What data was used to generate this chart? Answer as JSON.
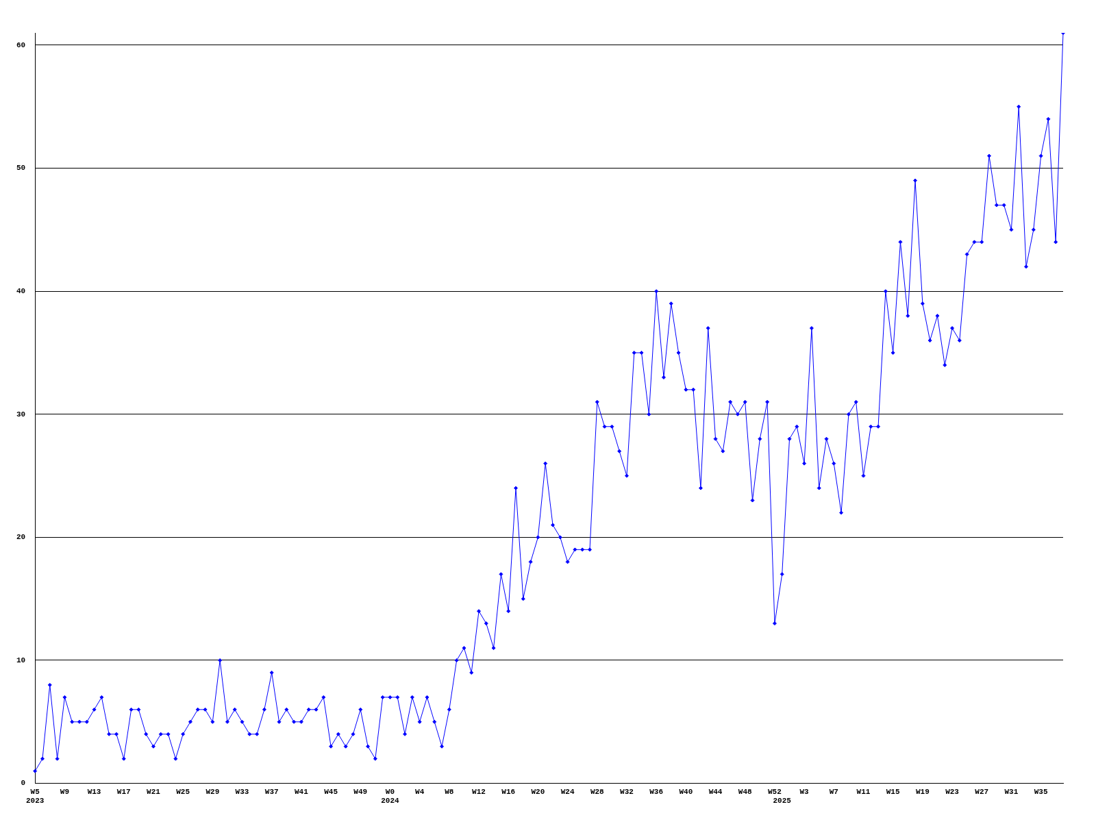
{
  "chart_data": {
    "type": "line",
    "categories": [
      "W5\n2023",
      null,
      null,
      null,
      "W9",
      null,
      null,
      null,
      "W13",
      null,
      null,
      null,
      "W17",
      null,
      null,
      null,
      "W21",
      null,
      null,
      null,
      "W25",
      null,
      null,
      null,
      "W29",
      null,
      null,
      null,
      "W33",
      null,
      null,
      null,
      "W37",
      null,
      null,
      null,
      "W41",
      null,
      null,
      null,
      "W45",
      null,
      null,
      null,
      "W49",
      null,
      null,
      null,
      "W0\n2024",
      null,
      null,
      null,
      "W4",
      null,
      null,
      null,
      "W8",
      null,
      null,
      null,
      "W12",
      null,
      null,
      null,
      "W16",
      null,
      null,
      null,
      "W20",
      null,
      null,
      null,
      "W24",
      null,
      null,
      null,
      "W28",
      null,
      null,
      null,
      "W32",
      null,
      null,
      null,
      "W36",
      null,
      null,
      null,
      "W40",
      null,
      null,
      null,
      "W44",
      null,
      null,
      null,
      "W48",
      null,
      null,
      null,
      "W52",
      "\n2025",
      null,
      null,
      "W3",
      null,
      null,
      null,
      "W7",
      null,
      null,
      null,
      "W11",
      null,
      null,
      null,
      "W15",
      null,
      null,
      null,
      "W19",
      null,
      null,
      null,
      "W23",
      null,
      null,
      null,
      "W27",
      null,
      null,
      null,
      "W31",
      null,
      null,
      null,
      "W35",
      null,
      null,
      null
    ],
    "series": [
      {
        "color": "#0000ff",
        "values": [
          1,
          2,
          8,
          2,
          7,
          5,
          5,
          5,
          6,
          7,
          4,
          4,
          2,
          6,
          6,
          4,
          3,
          4,
          4,
          2,
          4,
          5,
          6,
          6,
          5,
          10,
          5,
          6,
          5,
          4,
          4,
          6,
          9,
          5,
          6,
          5,
          5,
          6,
          6,
          7,
          3,
          4,
          3,
          4,
          6,
          3,
          2,
          7,
          7,
          7,
          4,
          7,
          5,
          7,
          5,
          3,
          6,
          10,
          11,
          9,
          14,
          13,
          11,
          17,
          14,
          24,
          15,
          18,
          20,
          26,
          21,
          20,
          18,
          19,
          19,
          19,
          31,
          29,
          29,
          27,
          25,
          35,
          35,
          30,
          40,
          33,
          39,
          35,
          32,
          32,
          24,
          37,
          28,
          27,
          31,
          30,
          31,
          23,
          28,
          31,
          13,
          17,
          28,
          29,
          26,
          37,
          24,
          28,
          26,
          22,
          30,
          31,
          25,
          29,
          29,
          40,
          35,
          44,
          38,
          49,
          39,
          36,
          38,
          34,
          37,
          36,
          43,
          44,
          44,
          51,
          47,
          47,
          45,
          55,
          42,
          45,
          51,
          54,
          44,
          61
        ]
      }
    ],
    "ylim": [
      0,
      61
    ],
    "yticks": [
      0,
      10,
      20,
      30,
      40,
      50,
      60
    ],
    "grid": "y",
    "legend": false,
    "marker": "diamond",
    "line_style": "solid"
  }
}
